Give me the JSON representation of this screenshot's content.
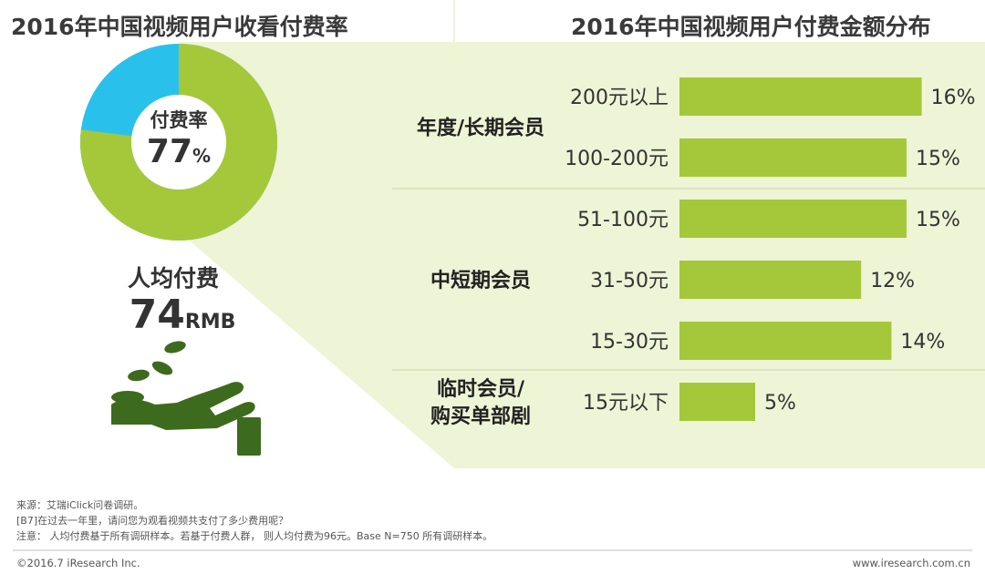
{
  "left_title": "2016年中国视频用户收看付费率",
  "right_title": "2016年中国视频用户付费金额分布",
  "donut": {
    "label": "付费率",
    "value_number": "77",
    "value_unit": "%",
    "paid_ratio": 0.77,
    "colors": {
      "paid": "#a5c83a",
      "unpaid": "#29c1ec"
    }
  },
  "per_capita": {
    "label": "人均付费",
    "value_number": "74",
    "value_unit": "RMB"
  },
  "icon": {
    "name": "hand-coins-icon",
    "color": "#3d6b1e"
  },
  "chart_data": {
    "type": "bar",
    "orientation": "horizontal",
    "title": "2016年中国视频用户付费金额分布",
    "categories": [
      "200元以上",
      "100-200元",
      "51-100元",
      "31-50元",
      "15-30元",
      "15元以下"
    ],
    "values": [
      16,
      15,
      15,
      12,
      14,
      5
    ],
    "value_labels": [
      "16%",
      "15%",
      "15%",
      "12%",
      "14%",
      "5%"
    ],
    "groups": [
      {
        "label": "年度/长期会员",
        "lines": [
          "年度/长期会员"
        ],
        "categories": [
          "200元以上",
          "100-200元"
        ]
      },
      {
        "label": "中短期会员",
        "lines": [
          "中短期会员"
        ],
        "categories": [
          "51-100元",
          "31-50元",
          "15-30元"
        ]
      },
      {
        "label": "临时会员/购买单部剧",
        "lines": [
          "临时会员/",
          "购买单部剧"
        ],
        "categories": [
          "15元以下"
        ]
      }
    ],
    "bar_color": "#a5c83a",
    "background_color": "#eef4d6"
  },
  "footer": {
    "source": "来源：艾瑞iClick问卷调研。",
    "question": "[B7]在过去一年里，请问您为观看视频共支付了多少费用呢？",
    "note": "注意： 人均付费基于所有调研样本。若基于付费人群， 则人均付费为96元。Base N=750 所有调研样本。",
    "copyright": "©2016.7 iResearch Inc.",
    "website": "www.iresearch.com.cn"
  }
}
